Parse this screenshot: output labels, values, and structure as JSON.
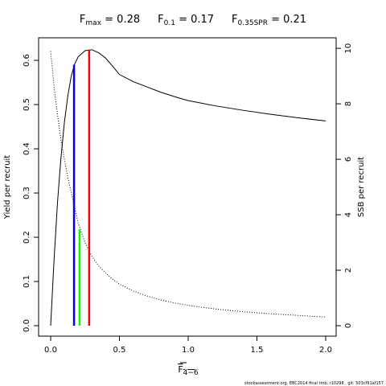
{
  "chart_data": {
    "type": "line",
    "title": [
      {
        "base": "F",
        "sub": "max",
        "rest": " = 0.28"
      },
      {
        "base": "F",
        "sub": "0.1",
        "rest": " = 0.17"
      },
      {
        "base": "F",
        "sub": "0.35SPR",
        "rest": " = 0.21"
      }
    ],
    "x_label": {
      "base": "F",
      "sub": "4−6"
    },
    "y_label": "Yield per recruit",
    "y2_label": "SSB per recruit",
    "footer": "stockassessment.org, EBC2014 final tmb, r10298 , git: 503cf91af157",
    "x": [
      0,
      0.025,
      0.05,
      0.075,
      0.1,
      0.125,
      0.15,
      0.175,
      0.2,
      0.25,
      0.3,
      0.35,
      0.4,
      0.45,
      0.5,
      0.6,
      0.7,
      0.8,
      0.9,
      1.0,
      1.2,
      1.4,
      1.6,
      1.8,
      2.0
    ],
    "series": [
      {
        "color": "#000000",
        "dash": "none",
        "values": [
          0,
          0.15,
          0.28,
          0.38,
          0.46,
          0.52,
          0.565,
          0.592,
          0.608,
          0.622,
          0.624,
          0.617,
          0.605,
          0.587,
          0.568,
          0.552,
          0.54,
          0.528,
          0.518,
          0.509,
          0.497,
          0.487,
          0.478,
          0.47,
          0.463
        ]
      },
      {
        "color": "#000000",
        "dash": "1 2",
        "axis": "y2",
        "values": [
          9.9,
          8.6,
          7.6,
          6.7,
          6.0,
          5.35,
          4.8,
          4.25,
          3.7,
          3.0,
          2.5,
          2.15,
          1.9,
          1.68,
          1.5,
          1.25,
          1.07,
          0.93,
          0.82,
          0.73,
          0.6,
          0.5,
          0.43,
          0.37,
          0.31
        ]
      }
    ],
    "reference_lines": [
      {
        "x": 0.17,
        "top": 0.59,
        "axis": "y",
        "color": "#0000ff"
      },
      {
        "x": 0.28,
        "top": 0.624,
        "axis": "y",
        "color": "#ff0000"
      },
      {
        "x": 0.21,
        "top": 3.48,
        "axis": "y2",
        "color": "#00ff00"
      }
    ],
    "xlim": [
      -0.0877,
      2.076
    ],
    "xticks": [
      {
        "value": 0,
        "label": "0.0"
      },
      {
        "value": 0.5,
        "label": "0.5"
      },
      {
        "value": 1,
        "label": "1.0"
      },
      {
        "value": 1.5,
        "label": "1.5"
      },
      {
        "value": 2,
        "label": "2.0"
      }
    ],
    "ylim": [
      -0.0236,
      0.651
    ],
    "yticks": [
      {
        "value": 0,
        "label": "0.0"
      },
      0.1,
      0.2,
      0.3,
      0.4,
      0.5,
      0.6
    ],
    "y2lim": [
      -0.377,
      10.38
    ],
    "y2ticks": [
      0,
      2,
      4,
      6,
      8,
      10
    ]
  }
}
